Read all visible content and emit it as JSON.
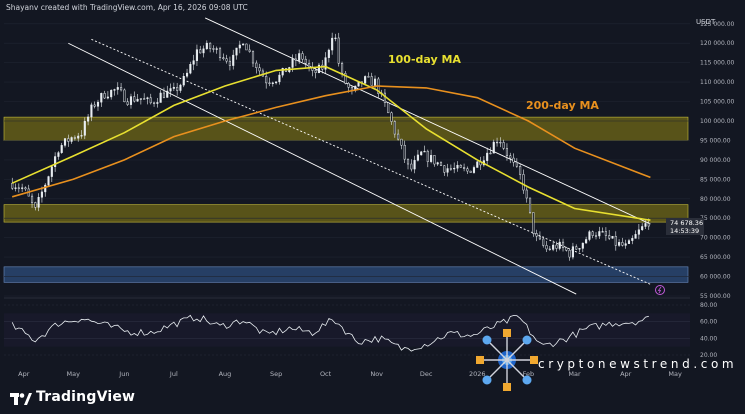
{
  "header": {
    "attribution": "Shayanv created with TradingView.com, Apr 16, 2026 09:08 UTC",
    "currency": "USDT"
  },
  "annotations": {
    "ma100": "100-day MA",
    "ma200": "200-day MA"
  },
  "price_labels": {
    "current": "74 678.36",
    "countdown": "14:53:39"
  },
  "footer": {
    "brand": "TradingView",
    "watermark": "cryptonewstrend.com"
  },
  "colors": {
    "ma100": "#e8e030",
    "ma200": "#e8901e",
    "zone_yellow": "#6b6417",
    "zone_blue": "#2c4a78",
    "channel": "#ffffff",
    "candle_up": "#e9eef2",
    "candle_down": "#e9eef2"
  },
  "chart_data": [
    {
      "type": "line",
      "series_kind": "candlestick-price",
      "x_ticks": [
        "Apr",
        "May",
        "Jun",
        "Jul",
        "Aug",
        "Sep",
        "Oct",
        "Nov",
        "Dec",
        "2026",
        "Feb",
        "Mar",
        "Apr",
        "May"
      ],
      "y_ticks": [
        "125 000.00",
        "120 000.00",
        "115 000.00",
        "110 000.00",
        "105 000.00",
        "100 000.00",
        "95 000.00",
        "90 000.00",
        "85 000.00",
        "80 000.00",
        "75 000.00",
        "70 000.00",
        "65 000.00",
        "60 000.00",
        "55 000.00"
      ],
      "ylim": [
        55000,
        127000
      ],
      "series": [
        {
          "kind": "price",
          "x": [
            "2025-03-25",
            "2025-04-01",
            "2025-04-08",
            "2025-04-15",
            "2025-04-22",
            "2025-04-29",
            "2025-05-06",
            "2025-05-13",
            "2025-05-20",
            "2025-05-27",
            "2025-06-03",
            "2025-06-10",
            "2025-06-17",
            "2025-06-24",
            "2025-07-01",
            "2025-07-08",
            "2025-07-15",
            "2025-07-22",
            "2025-07-29",
            "2025-08-05",
            "2025-08-12",
            "2025-08-19",
            "2025-08-26",
            "2025-09-02",
            "2025-09-09",
            "2025-09-16",
            "2025-09-23",
            "2025-09-30",
            "2025-10-06",
            "2025-10-10",
            "2025-10-17",
            "2025-10-24",
            "2025-10-31",
            "2025-11-07",
            "2025-11-14",
            "2025-11-21",
            "2025-11-28",
            "2025-12-05",
            "2025-12-12",
            "2025-12-19",
            "2025-12-26",
            "2026-01-02",
            "2026-01-09",
            "2026-01-14",
            "2026-01-21",
            "2026-01-28",
            "2026-02-05",
            "2026-02-12",
            "2026-02-19",
            "2026-02-26",
            "2026-03-05",
            "2026-03-12",
            "2026-03-19",
            "2026-03-26",
            "2026-04-02",
            "2026-04-09",
            "2026-04-16"
          ],
          "values": [
            84000,
            82500,
            77000,
            85000,
            93000,
            95500,
            97000,
            104000,
            107000,
            108000,
            105500,
            106000,
            104500,
            107000,
            107500,
            111000,
            118000,
            119000,
            117500,
            115000,
            121000,
            115000,
            110500,
            111000,
            114000,
            117000,
            112000,
            114000,
            124000,
            112000,
            107000,
            110500,
            110000,
            103000,
            95000,
            87000,
            91500,
            90000,
            88000,
            87500,
            87000,
            89500,
            93000,
            96000,
            90000,
            85000,
            70000,
            67000,
            68000,
            66000,
            68500,
            71500,
            70500,
            68500,
            67500,
            71500,
            74678
          ]
        },
        {
          "kind": "ma100",
          "x": [
            "2025-03-25",
            "2025-05-01",
            "2025-06-01",
            "2025-07-01",
            "2025-08-01",
            "2025-09-01",
            "2025-10-01",
            "2025-11-01",
            "2025-12-01",
            "2026-01-01",
            "2026-02-01",
            "2026-03-01",
            "2026-04-16"
          ],
          "values": [
            84000,
            91000,
            97000,
            104000,
            109000,
            113000,
            114000,
            108000,
            98000,
            90000,
            83000,
            77500,
            74500
          ]
        },
        {
          "kind": "ma200",
          "x": [
            "2025-03-25",
            "2025-05-01",
            "2025-06-01",
            "2025-07-01",
            "2025-08-01",
            "2025-09-01",
            "2025-10-01",
            "2025-11-01",
            "2025-12-01",
            "2026-01-01",
            "2026-02-01",
            "2026-03-01",
            "2026-04-16"
          ],
          "values": [
            80500,
            85000,
            90000,
            96000,
            100000,
            103500,
            106500,
            109000,
            108500,
            106000,
            100000,
            93000,
            85500
          ]
        }
      ],
      "zones": [
        {
          "kind": "resistance",
          "from": 95000,
          "to": 101000
        },
        {
          "kind": "support",
          "from": 74000,
          "to": 78500
        },
        {
          "kind": "demand",
          "from": 58500,
          "to": 62500
        }
      ]
    },
    {
      "type": "line",
      "series_kind": "rsi",
      "y_ticks": [
        "80.00",
        "60.00",
        "40.00",
        "20.00"
      ],
      "ylim": [
        14,
        86
      ],
      "series": [
        {
          "kind": "rsi",
          "x": [
            "2025-03-25",
            "2025-04-08",
            "2025-04-22",
            "2025-05-06",
            "2025-05-20",
            "2025-06-03",
            "2025-06-17",
            "2025-07-01",
            "2025-07-15",
            "2025-07-29",
            "2025-08-12",
            "2025-08-26",
            "2025-09-09",
            "2025-09-23",
            "2025-10-06",
            "2025-10-20",
            "2025-11-03",
            "2025-11-17",
            "2025-12-01",
            "2025-12-15",
            "2025-12-29",
            "2026-01-12",
            "2026-01-26",
            "2026-02-09",
            "2026-02-23",
            "2026-03-09",
            "2026-03-23",
            "2026-04-06",
            "2026-04-16"
          ],
          "values": [
            55,
            38,
            58,
            64,
            56,
            48,
            47,
            57,
            66,
            54,
            62,
            44,
            52,
            47,
            63,
            36,
            40,
            27,
            33,
            46,
            43,
            55,
            66,
            30,
            39,
            52,
            58,
            60,
            64
          ]
        }
      ]
    }
  ]
}
